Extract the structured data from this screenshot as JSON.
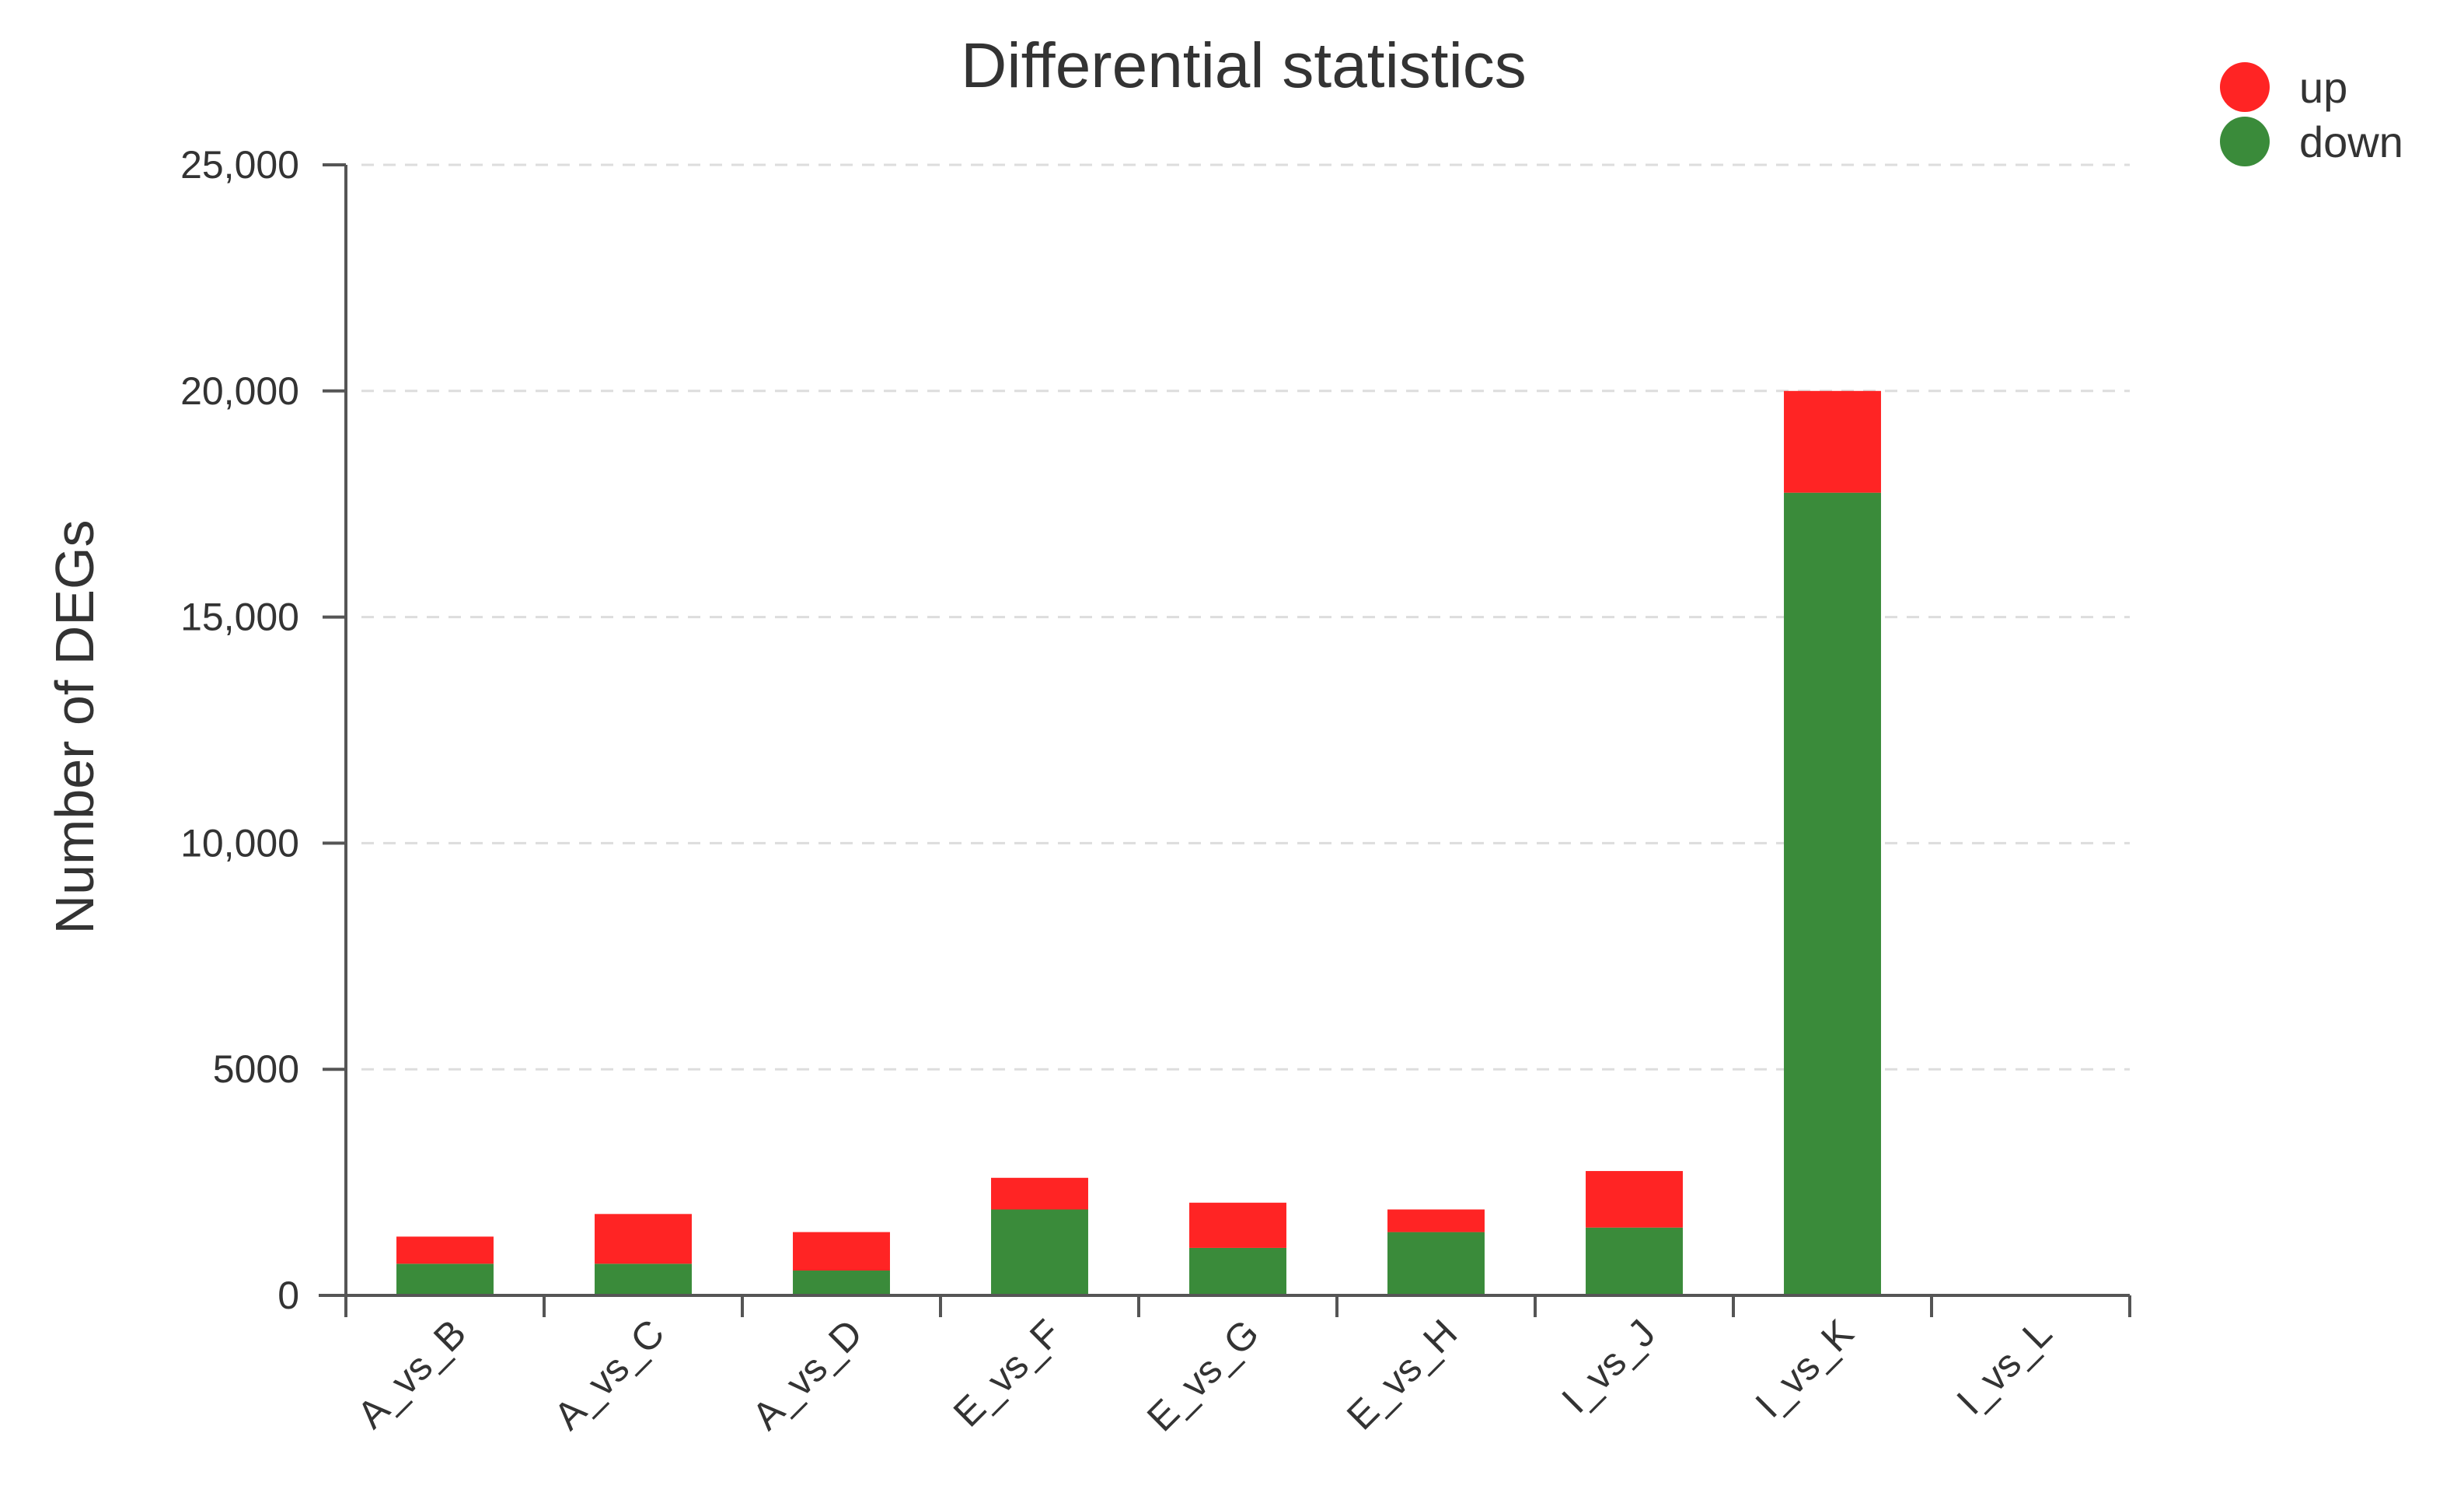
{
  "chart_data": {
    "type": "bar",
    "stacked": true,
    "title": "Differential statistics",
    "xlabel": "",
    "ylabel": "Number of DEGs",
    "ylim": [
      0,
      25000
    ],
    "yticks": [
      0,
      5000,
      10000,
      15000,
      20000,
      25000
    ],
    "ytick_labels": [
      "0",
      "5000",
      "10,000",
      "15,000",
      "20,000",
      "25,000"
    ],
    "grid": true,
    "legend_position": "top-right",
    "categories": [
      "A_vs_B",
      "A_vs_C",
      "A_vs_D",
      "E_vs_F",
      "E_vs_G",
      "E_vs_H",
      "I_vs_J",
      "I_vs_K",
      "I_vs_L"
    ],
    "series": [
      {
        "name": "down",
        "color": "#3a8b3a",
        "values": [
          700,
          700,
          550,
          1900,
          1050,
          1400,
          1500,
          17750,
          0
        ]
      },
      {
        "name": "up",
        "color": "#ff2424",
        "values": [
          600,
          1100,
          850,
          700,
          1000,
          500,
          1250,
          2250,
          0
        ]
      }
    ],
    "legend": [
      {
        "label": "up",
        "color": "#ff2424"
      },
      {
        "label": "down",
        "color": "#3a8b3a"
      }
    ]
  }
}
